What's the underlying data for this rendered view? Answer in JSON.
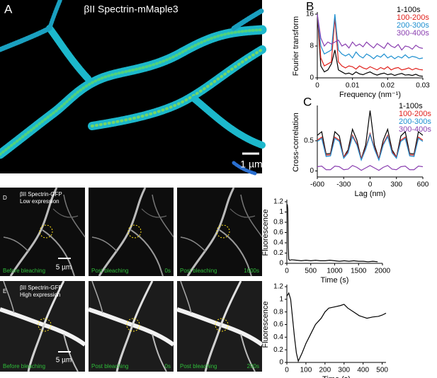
{
  "panels": {
    "a": {
      "letter": "A",
      "title": "βII Spectrin-mMaple3",
      "scale_bar": "1 µm"
    },
    "b": {
      "letter": "B"
    },
    "c": {
      "letter": "C"
    },
    "d": {
      "letter": "D",
      "construct": "βII Spectrin-GFP",
      "expression": "Low expression",
      "frames": [
        "Before bleaching",
        "Post bleaching",
        "Post bleaching"
      ],
      "times": [
        "0s",
        "1600s"
      ],
      "scale_bar": "5 µm"
    },
    "e": {
      "letter": "E",
      "construct": "βII Spectrin-GFP",
      "expression": "High expression",
      "frames": [
        "Before bleaching",
        "Post bleaching",
        "Post bleaching"
      ],
      "times": [
        "0s",
        "200s"
      ],
      "scale_bar": "5 µm"
    }
  },
  "chart_data": [
    {
      "type": "line",
      "ylabel": "Fourier transform",
      "xlabel": "Frequency (nm⁻¹)",
      "xlim": [
        0,
        0.03
      ],
      "xticks": [
        0,
        0.01,
        0.02,
        0.03
      ],
      "ylim": [
        0,
        16
      ],
      "yticks": [
        0,
        8,
        16
      ],
      "legend": "upper right",
      "x": [
        0,
        0.001,
        0.002,
        0.003,
        0.004,
        0.005,
        0.006,
        0.007,
        0.008,
        0.009,
        0.01,
        0.011,
        0.012,
        0.013,
        0.014,
        0.015,
        0.016,
        0.017,
        0.018,
        0.019,
        0.02,
        0.021,
        0.022,
        0.023,
        0.024,
        0.025,
        0.026,
        0.027,
        0.028,
        0.029,
        0.03
      ],
      "series": [
        {
          "name": "1-100s",
          "color": "#000000",
          "values": [
            16,
            3,
            1.5,
            2,
            3.5,
            7,
            2,
            1.5,
            1,
            1.2,
            0.8,
            1.5,
            1,
            0.8,
            1.2,
            1.5,
            1,
            0.7,
            1,
            1.2,
            0.8,
            1,
            0.6,
            0.9,
            1.1,
            0.7,
            0.8,
            0.6,
            0.9,
            0.5,
            0.4
          ]
        },
        {
          "name": "100-200s",
          "color": "#e0201b",
          "values": [
            16,
            5,
            3,
            3.5,
            4,
            15,
            4,
            3,
            2.5,
            3,
            2.8,
            2.2,
            3,
            2.5,
            2.2,
            2.8,
            2.4,
            2,
            2.6,
            2.2,
            2.8,
            2,
            2.4,
            2.6,
            2,
            2.2,
            2.5,
            2,
            2.4,
            2.1,
            2
          ]
        },
        {
          "name": "200-300s",
          "color": "#1d8fd0",
          "values": [
            16,
            8,
            6,
            6.5,
            7,
            16,
            7,
            6,
            5.5,
            6,
            5,
            6.5,
            5.5,
            5,
            6,
            5.5,
            4.8,
            5.6,
            5.2,
            6,
            5,
            5.5,
            4.8,
            5.4,
            5,
            5.8,
            5,
            5.4,
            5.2,
            4.8,
            5
          ]
        },
        {
          "name": "300-400s",
          "color": "#8a3fb0",
          "values": [
            16,
            10,
            8,
            9,
            8.5,
            9,
            9.5,
            8,
            8.5,
            7.5,
            9,
            8,
            8.5,
            7.8,
            9,
            8.2,
            7.5,
            8.6,
            8,
            7.4,
            8.8,
            8,
            7.6,
            8.4,
            7,
            8,
            7.8,
            7.2,
            8.2,
            7.6,
            7.4
          ]
        }
      ]
    },
    {
      "type": "line",
      "ylabel": "Cross-correlation",
      "xlabel": "Lag (nm)",
      "xlim": [
        -600,
        600
      ],
      "xticks": [
        -600,
        -300,
        0,
        300,
        600
      ],
      "ylim": [
        -0.1,
        1.05
      ],
      "yticks": [
        0,
        0.5
      ],
      "legend": "upper right",
      "x": [
        -600,
        -550,
        -500,
        -450,
        -400,
        -350,
        -300,
        -250,
        -200,
        -150,
        -100,
        -50,
        0,
        50,
        100,
        150,
        200,
        250,
        300,
        350,
        400,
        450,
        500,
        550,
        600
      ],
      "series": [
        {
          "name": "1-100s",
          "color": "#000000",
          "values": [
            0.59,
            0.65,
            0.28,
            0.29,
            0.65,
            0.58,
            0.23,
            0.35,
            0.69,
            0.51,
            0.2,
            0.43,
            1.0,
            0.43,
            0.2,
            0.51,
            0.69,
            0.35,
            0.23,
            0.58,
            0.65,
            0.29,
            0.28,
            0.65,
            0.59
          ]
        },
        {
          "name": "100-200s",
          "color": "#e0201b",
          "values": [
            0.51,
            0.56,
            0.26,
            0.27,
            0.56,
            0.51,
            0.23,
            0.32,
            0.59,
            0.45,
            0.2,
            0.38,
            0.62,
            0.38,
            0.2,
            0.45,
            0.59,
            0.32,
            0.23,
            0.51,
            0.56,
            0.27,
            0.26,
            0.56,
            0.51
          ]
        },
        {
          "name": "200-300s",
          "color": "#1d8fd0",
          "values": [
            0.49,
            0.54,
            0.24,
            0.25,
            0.54,
            0.49,
            0.21,
            0.3,
            0.57,
            0.43,
            0.18,
            0.36,
            0.6,
            0.36,
            0.18,
            0.43,
            0.57,
            0.3,
            0.21,
            0.49,
            0.54,
            0.25,
            0.24,
            0.54,
            0.49
          ]
        },
        {
          "name": "300-400s",
          "color": "#8a3fb0",
          "values": [
            0.07,
            0.08,
            0.02,
            0.02,
            0.08,
            0.07,
            0.02,
            0.03,
            0.09,
            0.06,
            0.01,
            0.05,
            0.09,
            0.05,
            0.01,
            0.06,
            0.09,
            0.03,
            0.02,
            0.07,
            0.08,
            0.02,
            0.02,
            0.08,
            0.07
          ]
        }
      ]
    },
    {
      "type": "line",
      "ylabel": "Fluorescence",
      "xlabel": "Time (s)",
      "color": "#000000",
      "xlim": [
        0,
        2000
      ],
      "xticks": [
        0,
        500,
        1000,
        1500,
        2000
      ],
      "ylim": [
        0,
        1.2
      ],
      "yticks": [
        0,
        0.2,
        0.4,
        0.6,
        0.8,
        1,
        1.2
      ],
      "x": [
        0,
        10,
        20,
        30,
        40,
        60,
        100,
        200,
        300,
        400,
        500,
        600,
        700,
        800,
        900,
        1000,
        1100,
        1200,
        1300,
        1400,
        1500,
        1600,
        1700,
        1800,
        1900
      ],
      "values": [
        1.1,
        1.15,
        1.05,
        0.3,
        0.08,
        0.06,
        0.07,
        0.06,
        0.05,
        0.06,
        0.05,
        0.06,
        0.05,
        0.05,
        0.06,
        0.05,
        0.04,
        0.05,
        0.04,
        0.05,
        0.04,
        0.04,
        0.03,
        0.04,
        0.03
      ]
    },
    {
      "type": "line",
      "ylabel": "Fluorescence",
      "xlabel": "Time (s)",
      "color": "#000000",
      "xlim": [
        0,
        520
      ],
      "xticks": [
        0,
        100,
        200,
        300,
        400,
        500
      ],
      "ylim": [
        0,
        1.2
      ],
      "yticks": [
        0,
        0.2,
        0.4,
        0.6,
        0.8,
        1,
        1.2
      ],
      "x": [
        0,
        10,
        20,
        30,
        40,
        50,
        60,
        80,
        100,
        120,
        150,
        180,
        200,
        220,
        250,
        280,
        300,
        320,
        350,
        380,
        400,
        420,
        450,
        480,
        500,
        520
      ],
      "values": [
        1.05,
        1.1,
        1.0,
        0.7,
        0.4,
        0.15,
        0.02,
        0.15,
        0.3,
        0.42,
        0.6,
        0.7,
        0.8,
        0.86,
        0.88,
        0.9,
        0.92,
        0.86,
        0.8,
        0.74,
        0.72,
        0.7,
        0.72,
        0.73,
        0.75,
        0.78
      ]
    }
  ]
}
